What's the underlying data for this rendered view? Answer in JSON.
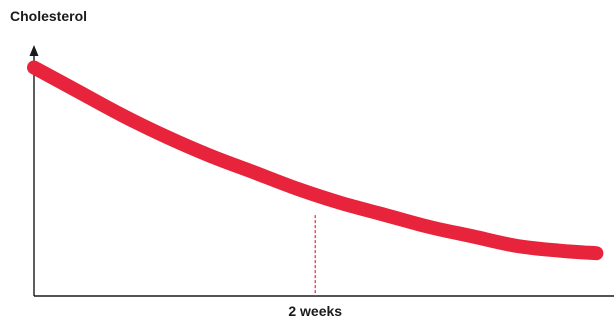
{
  "chart_data": {
    "type": "line",
    "title": "",
    "xlabel": "",
    "ylabel": "Cholesterol",
    "grid": false,
    "legend": "none",
    "axis_ticks": false,
    "xlim": [
      0,
      6.6
    ],
    "ylim": [
      0,
      1
    ],
    "series": [
      {
        "color": "#e8243c",
        "x": [
          0,
          0.5,
          1,
          1.5,
          2,
          2.5,
          3,
          3.5,
          4,
          4.5,
          5,
          5.5,
          6,
          6.4
        ],
        "y": [
          0.96,
          0.86,
          0.76,
          0.67,
          0.59,
          0.52,
          0.45,
          0.39,
          0.34,
          0.29,
          0.25,
          0.21,
          0.19,
          0.18
        ]
      }
    ],
    "annotations": [
      {
        "label": "2 weeks",
        "x": 3.2,
        "color": "#e8243c",
        "style": "dashed-vertical",
        "y_top": 0.34
      }
    ]
  }
}
